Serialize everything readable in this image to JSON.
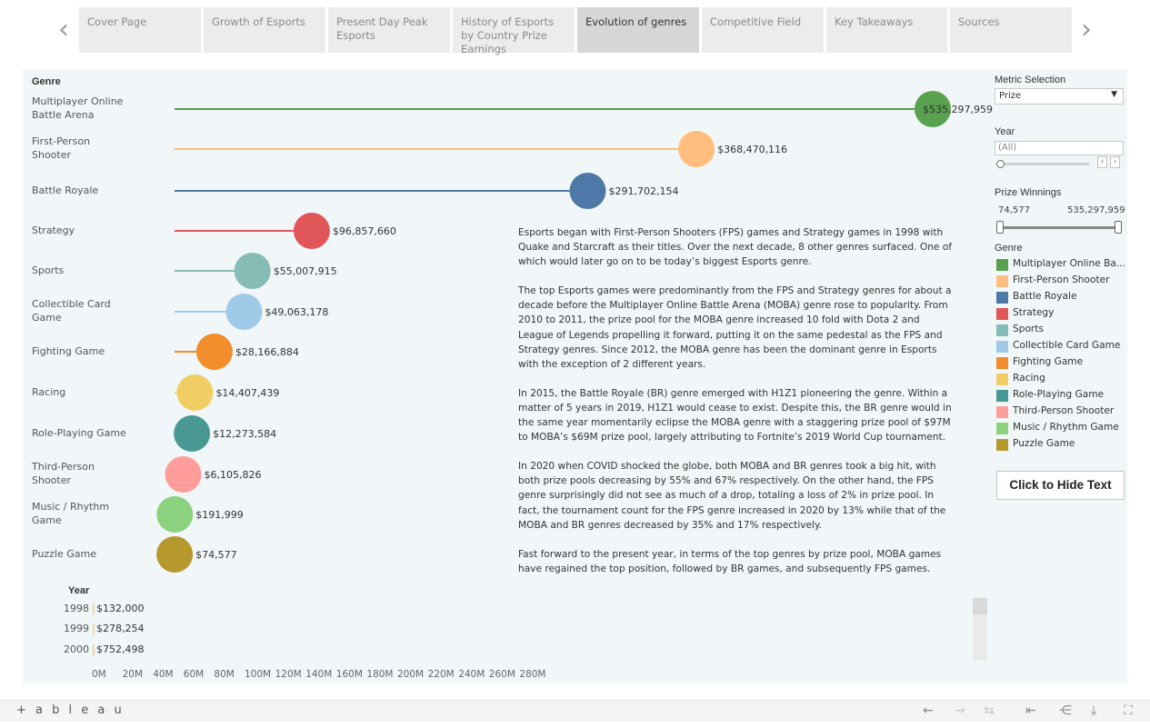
{
  "nav": {
    "prev_arrow": "‹",
    "next_arrow": "›",
    "tabs": [
      {
        "label": "Cover Page"
      },
      {
        "label": "Growth of Esports"
      },
      {
        "label": "Present Day Peak Esports"
      },
      {
        "label": "History of Esports by Country Prize Earnings"
      },
      {
        "label": "Evolution of genres",
        "active": true
      },
      {
        "label": "Competitive Field"
      },
      {
        "label": "Key Takeaways"
      },
      {
        "label": "Sources"
      }
    ]
  },
  "chart_data": {
    "type": "lollipop",
    "column_title": "Genre",
    "categories": [
      {
        "name": "Multiplayer Online Battle Arena",
        "label_lines": [
          "Multiplayer Online",
          "Battle Arena"
        ],
        "value": 535297959,
        "value_label": "$535,297,959",
        "color": "#59a14f"
      },
      {
        "name": "First-Person Shooter",
        "label_lines": [
          "First-Person",
          "Shooter"
        ],
        "value": 368470116,
        "value_label": "$368,470,116",
        "color": "#ffbe7d"
      },
      {
        "name": "Battle Royale",
        "label_lines": [
          "Battle Royale"
        ],
        "value": 291702154,
        "value_label": "$291,702,154",
        "color": "#4e79a7"
      },
      {
        "name": "Strategy",
        "label_lines": [
          "Strategy"
        ],
        "value": 96857660,
        "value_label": "$96,857,660",
        "color": "#e15759"
      },
      {
        "name": "Sports",
        "label_lines": [
          "Sports"
        ],
        "value": 55007915,
        "value_label": "$55,007,915",
        "color": "#86bcb6"
      },
      {
        "name": "Collectible Card Game",
        "label_lines": [
          "Collectible Card",
          "Game"
        ],
        "value": 49063178,
        "value_label": "$49,063,178",
        "color": "#a0cbe8"
      },
      {
        "name": "Fighting Game",
        "label_lines": [
          "Fighting Game"
        ],
        "value": 28166884,
        "value_label": "$28,166,884",
        "color": "#f28e2b"
      },
      {
        "name": "Racing",
        "label_lines": [
          "Racing"
        ],
        "value": 14407439,
        "value_label": "$14,407,439",
        "color": "#f1ce63"
      },
      {
        "name": "Role-Playing Game",
        "label_lines": [
          "Role-Playing Game"
        ],
        "value": 12273584,
        "value_label": "$12,273,584",
        "color": "#499894"
      },
      {
        "name": "Third-Person Shooter",
        "label_lines": [
          "Third-Person",
          "Shooter"
        ],
        "value": 6105826,
        "value_label": "$6,105,826",
        "color": "#ff9d9a"
      },
      {
        "name": "Music / Rhythm Game",
        "label_lines": [
          "Music / Rhythm",
          "Game"
        ],
        "value": 191999,
        "value_label": "$191,999",
        "color": "#8cd17d"
      },
      {
        "name": "Puzzle Game",
        "label_lines": [
          "Puzzle Game"
        ],
        "value": 74577,
        "value_label": "$74,577",
        "color": "#b6992d"
      }
    ],
    "year_chart": {
      "title": "Year",
      "rows": [
        {
          "year": "1998",
          "value": 132000,
          "value_label": "$132,000"
        },
        {
          "year": "1999",
          "value": 278254,
          "value_label": "$278,254"
        },
        {
          "year": "2000",
          "value": 752498,
          "value_label": "$752,498"
        }
      ],
      "x_ticks": [
        "0M",
        "20M",
        "40M",
        "60M",
        "80M",
        "100M",
        "120M",
        "140M",
        "160M",
        "180M",
        "200M",
        "220M",
        "240M",
        "260M",
        "280M"
      ],
      "xlim": [
        0,
        280000000
      ]
    }
  },
  "story": {
    "paragraphs": [
      "Esports began with First-Person Shooters (FPS) games and Strategy games in 1998 with Quake and Starcraft as their titles. Over the next decade, 8 other genres surfaced. One of which would later go on to be today’s biggest Esports genre.",
      "The top Esports games were predominantly from the FPS and Strategy genres for about a decade before the Multiplayer Online Battle Arena (MOBA) genre rose to popularity. From 2010 to 2011, the prize pool for the MOBA genre increased 10 fold with Dota 2 and League of Legends propelling it forward, putting it on the same pedestal as the FPS and Strategy genres. Since 2012, the MOBA genre has been the dominant genre in Esports with the exception of 2 different years.",
      "In 2015, the Battle Royale (BR) genre emerged with H1Z1 pioneering the genre. Within a matter of 5 years in 2019, H1Z1 would cease to exist. Despite this, the BR genre would in the same year momentarily eclipse the MOBA genre with a staggering prize pool of $97M to MOBA’s $69M prize pool, largely attributing to Fortnite’s 2019 World Cup tournament.",
      "In 2020 when COVID shocked the globe, both MOBA and BR genres took a big hit, with both prize pools decreasing by 55% and 67% respectively. On the other hand, the FPS genre surprisingly did not see as much of a drop, totaling a loss of 2% in prize pool. In fact, the tournament count for the FPS genre increased in 2020 by 13% while that of the MOBA and BR genres decreased by 35% and 17% respectively.",
      "Fast forward to the present year, in terms of the top genres by prize pool, MOBA games have regained the top position, followed by BR games, and subsequently FPS games."
    ]
  },
  "panel": {
    "metric_title": "Metric Selection",
    "metric_value": "Prize",
    "year_title": "Year",
    "year_value": "(All)",
    "prize_title": "Prize Winnings",
    "prize_min": "74,577",
    "prize_max": "535,297,959",
    "legend_title": "Genre",
    "legend_items": [
      {
        "label": "Multiplayer Online Ba...",
        "color": "#59a14f"
      },
      {
        "label": "First-Person Shooter",
        "color": "#ffbe7d"
      },
      {
        "label": "Battle Royale",
        "color": "#4e79a7"
      },
      {
        "label": "Strategy",
        "color": "#e15759"
      },
      {
        "label": "Sports",
        "color": "#86bcb6"
      },
      {
        "label": "Collectible Card Game",
        "color": "#a0cbe8"
      },
      {
        "label": "Fighting Game",
        "color": "#f28e2b"
      },
      {
        "label": "Racing",
        "color": "#f1ce63"
      },
      {
        "label": "Role-Playing Game",
        "color": "#499894"
      },
      {
        "label": "Third-Person Shooter",
        "color": "#ff9d9a"
      },
      {
        "label": "Music / Rhythm Game",
        "color": "#8cd17d"
      },
      {
        "label": "Puzzle Game",
        "color": "#b6992d"
      }
    ],
    "hide_button": "Click to Hide Text"
  },
  "toolbar": {
    "logo": "+ a b l e a u"
  }
}
